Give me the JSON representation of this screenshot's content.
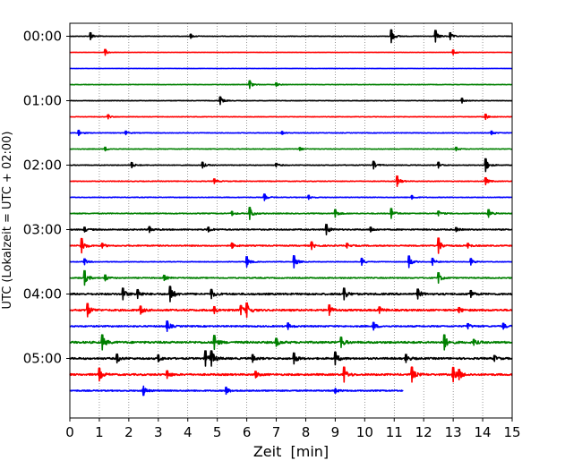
{
  "chart_data": {
    "type": "line",
    "title": "",
    "xlabel": "Zeit  [min]",
    "ylabel": "UTC (Lokalzeit = UTC + 02:00)",
    "xlim": [
      0,
      15
    ],
    "x_ticks": [
      "0",
      "1",
      "2",
      "3",
      "4",
      "5",
      "6",
      "7",
      "8",
      "9",
      "10",
      "11",
      "12",
      "13",
      "14",
      "15"
    ],
    "y_tick_labels": [
      {
        "row": 0,
        "label": "00:00"
      },
      {
        "row": 4,
        "label": "01:00"
      },
      {
        "row": 8,
        "label": "02:00"
      },
      {
        "row": 12,
        "label": "03:00"
      },
      {
        "row": 16,
        "label": "04:00"
      },
      {
        "row": 20,
        "label": "05:00"
      }
    ],
    "grid": "vertical dotted lines at each minute",
    "row_interval_minutes": 15,
    "colors_cycle": [
      "#000000",
      "#ff0000",
      "#0000ff",
      "#008000"
    ],
    "traces": [
      {
        "start": "00:00",
        "color": "#000000",
        "noise": 0.25,
        "end_min": 15,
        "events": [
          [
            0.7,
            1.2
          ],
          [
            4.1,
            0.7
          ],
          [
            10.9,
            2.2
          ],
          [
            12.4,
            2.0
          ],
          [
            12.9,
            1.2
          ]
        ]
      },
      {
        "start": "00:15",
        "color": "#ff0000",
        "noise": 0.12,
        "end_min": 15,
        "events": [
          [
            1.2,
            1.0
          ],
          [
            13.0,
            0.8
          ]
        ]
      },
      {
        "start": "00:30",
        "color": "#0000ff",
        "noise": 0.12,
        "end_min": 15,
        "events": []
      },
      {
        "start": "00:45",
        "color": "#008000",
        "noise": 0.22,
        "end_min": 15,
        "events": [
          [
            6.1,
            1.3
          ],
          [
            7.0,
            0.6
          ]
        ]
      },
      {
        "start": "01:00",
        "color": "#000000",
        "noise": 0.25,
        "end_min": 15,
        "events": [
          [
            5.1,
            1.3
          ],
          [
            13.3,
            0.8
          ]
        ]
      },
      {
        "start": "01:15",
        "color": "#ff0000",
        "noise": 0.25,
        "end_min": 15,
        "events": [
          [
            1.3,
            0.7
          ],
          [
            14.1,
            0.9
          ]
        ]
      },
      {
        "start": "01:30",
        "color": "#0000ff",
        "noise": 0.3,
        "end_min": 15,
        "events": [
          [
            0.3,
            0.9
          ],
          [
            1.9,
            0.6
          ],
          [
            7.2,
            0.5
          ],
          [
            14.3,
            0.6
          ]
        ]
      },
      {
        "start": "01:45",
        "color": "#008000",
        "noise": 0.3,
        "end_min": 15,
        "events": [
          [
            1.2,
            0.6
          ],
          [
            7.8,
            0.5
          ],
          [
            13.1,
            0.6
          ]
        ]
      },
      {
        "start": "02:00",
        "color": "#000000",
        "noise": 0.35,
        "end_min": 15,
        "events": [
          [
            2.1,
            0.9
          ],
          [
            4.5,
            1.0
          ],
          [
            7.0,
            0.6
          ],
          [
            10.3,
            1.3
          ],
          [
            12.5,
            1.0
          ],
          [
            14.1,
            2.2
          ]
        ]
      },
      {
        "start": "02:15",
        "color": "#ff0000",
        "noise": 0.35,
        "end_min": 15,
        "events": [
          [
            4.9,
            0.8
          ],
          [
            11.1,
            1.8
          ],
          [
            14.1,
            1.2
          ]
        ]
      },
      {
        "start": "02:30",
        "color": "#0000ff",
        "noise": 0.3,
        "end_min": 15,
        "events": [
          [
            6.6,
            1.1
          ],
          [
            8.1,
            0.7
          ],
          [
            11.6,
            0.6
          ]
        ]
      },
      {
        "start": "02:45",
        "color": "#008000",
        "noise": 0.45,
        "end_min": 15,
        "events": [
          [
            5.5,
            0.7
          ],
          [
            6.1,
            2.1
          ],
          [
            9.0,
            1.3
          ],
          [
            10.9,
            1.7
          ],
          [
            12.5,
            0.8
          ],
          [
            14.2,
            1.3
          ]
        ]
      },
      {
        "start": "03:00",
        "color": "#000000",
        "noise": 0.6,
        "end_min": 15,
        "events": [
          [
            0.5,
            0.8
          ],
          [
            2.7,
            1.0
          ],
          [
            4.7,
            0.8
          ],
          [
            8.7,
            1.8
          ],
          [
            10.2,
            0.8
          ],
          [
            13.1,
            0.7
          ]
        ]
      },
      {
        "start": "03:15",
        "color": "#ff0000",
        "noise": 0.6,
        "end_min": 15,
        "events": [
          [
            0.4,
            2.5
          ],
          [
            1.1,
            0.8
          ],
          [
            5.5,
            0.9
          ],
          [
            8.2,
            1.3
          ],
          [
            9.4,
            0.8
          ],
          [
            12.5,
            2.8
          ],
          [
            13.5,
            0.8
          ]
        ]
      },
      {
        "start": "03:30",
        "color": "#0000ff",
        "noise": 0.3,
        "end_min": 15,
        "events": [
          [
            0.5,
            1.0
          ],
          [
            6.0,
            1.8
          ],
          [
            7.6,
            2.1
          ],
          [
            9.9,
            1.2
          ],
          [
            11.5,
            2.0
          ],
          [
            12.3,
            1.2
          ],
          [
            13.6,
            1.1
          ]
        ]
      },
      {
        "start": "03:45",
        "color": "#008000",
        "noise": 0.55,
        "end_min": 15,
        "events": [
          [
            0.5,
            2.5
          ],
          [
            1.2,
            1.0
          ],
          [
            3.2,
            0.9
          ],
          [
            12.5,
            1.8
          ]
        ]
      },
      {
        "start": "04:00",
        "color": "#000000",
        "noise": 0.9,
        "end_min": 15,
        "events": [
          [
            1.8,
            2.0
          ],
          [
            2.3,
            1.5
          ],
          [
            3.4,
            3.0
          ],
          [
            4.8,
            1.6
          ],
          [
            9.3,
            2.0
          ],
          [
            11.8,
            1.7
          ],
          [
            13.6,
            1.2
          ]
        ]
      },
      {
        "start": "04:15",
        "color": "#ff0000",
        "noise": 0.9,
        "end_min": 15,
        "events": [
          [
            0.6,
            2.3
          ],
          [
            2.4,
            1.4
          ],
          [
            4.9,
            1.2
          ],
          [
            5.8,
            1.6
          ],
          [
            6.0,
            2.5
          ],
          [
            8.8,
            1.8
          ],
          [
            10.5,
            1.1
          ],
          [
            13.2,
            0.9
          ]
        ]
      },
      {
        "start": "04:30",
        "color": "#0000ff",
        "noise": 0.7,
        "end_min": 15,
        "events": [
          [
            3.3,
            1.8
          ],
          [
            7.4,
            1.1
          ],
          [
            10.3,
            1.3
          ],
          [
            13.5,
            0.9
          ],
          [
            14.7,
            1.0
          ]
        ]
      },
      {
        "start": "04:45",
        "color": "#008000",
        "noise": 1.0,
        "end_min": 15,
        "events": [
          [
            1.1,
            2.6
          ],
          [
            4.9,
            2.4
          ],
          [
            7.0,
            1.4
          ],
          [
            9.2,
            1.8
          ],
          [
            12.7,
            2.6
          ],
          [
            13.7,
            1.0
          ]
        ]
      },
      {
        "start": "05:00",
        "color": "#000000",
        "noise": 0.9,
        "end_min": 15,
        "events": [
          [
            1.6,
            1.5
          ],
          [
            3.0,
            1.2
          ],
          [
            4.6,
            3.0
          ],
          [
            4.8,
            2.7
          ],
          [
            6.2,
            1.3
          ],
          [
            7.6,
            1.9
          ],
          [
            9.0,
            2.2
          ],
          [
            11.4,
            1.4
          ],
          [
            14.4,
            1.0
          ]
        ]
      },
      {
        "start": "05:15",
        "color": "#ff0000",
        "noise": 0.9,
        "end_min": 15,
        "events": [
          [
            1.0,
            2.2
          ],
          [
            3.3,
            1.3
          ],
          [
            6.3,
            1.1
          ],
          [
            9.3,
            2.6
          ],
          [
            11.6,
            2.6
          ],
          [
            13.0,
            2.5
          ],
          [
            13.2,
            1.8
          ]
        ]
      },
      {
        "start": "05:30",
        "color": "#0000ff",
        "noise": 0.6,
        "end_min": 11.3,
        "events": [
          [
            2.5,
            1.6
          ],
          [
            5.3,
            1.2
          ],
          [
            9.0,
            0.8
          ]
        ]
      }
    ]
  }
}
